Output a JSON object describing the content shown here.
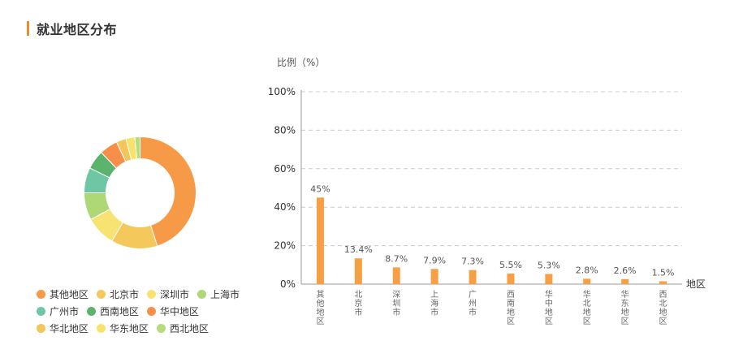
{
  "header": {
    "title": "就业地区分布"
  },
  "colors": {
    "accent": "#f08a2a",
    "bar": "#f79f45",
    "grid": "#cccccc",
    "axis": "#999999",
    "slices": [
      "#f79a47",
      "#f5c85c",
      "#f6e372",
      "#aed775",
      "#6ec6a4",
      "#5bb36e",
      "#f78f4b",
      "#f4c659",
      "#f7e36b",
      "#b4dc79"
    ]
  },
  "chart_data": [
    {
      "type": "pie",
      "style": "donut",
      "labels": [
        "其他地区",
        "北京市",
        "深圳市",
        "上海市",
        "广州市",
        "西南地区",
        "华中地区",
        "华北地区",
        "华东地区",
        "西北地区"
      ],
      "values": [
        45,
        13.4,
        8.7,
        7.9,
        7.3,
        5.5,
        5.3,
        2.8,
        2.6,
        1.5
      ],
      "legend": "bottom-left"
    },
    {
      "type": "bar",
      "categories": [
        "其他地区",
        "北京市",
        "深圳市",
        "上海市",
        "广州市",
        "西南地区",
        "华中地区",
        "华北地区",
        "华东地区",
        "西北地区"
      ],
      "values": [
        45,
        13.4,
        8.7,
        7.9,
        7.3,
        5.5,
        5.3,
        2.8,
        2.6,
        1.5
      ],
      "data_labels": [
        "45%",
        "13.4%",
        "8.7%",
        "7.9%",
        "7.3%",
        "5.5%",
        "5.3%",
        "2.8%",
        "2.6%",
        "1.5%"
      ],
      "ylabel": "比例（%）",
      "xlabel": "地区",
      "ylim": [
        0,
        100
      ],
      "yticks": [
        "0%",
        "20%",
        "40%",
        "60%",
        "80%",
        "100%"
      ],
      "grid": true
    }
  ]
}
